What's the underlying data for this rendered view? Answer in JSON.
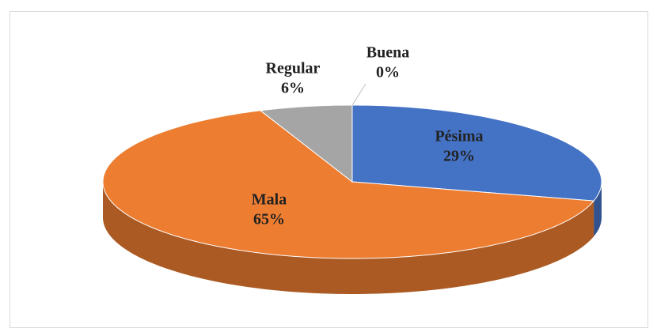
{
  "chart_data": {
    "type": "pie",
    "categories": [
      "Pésima",
      "Mala",
      "Regular",
      "Buena"
    ],
    "values": [
      29,
      65,
      6,
      0
    ],
    "value_labels": [
      "29%",
      "65%",
      "6%",
      "0%"
    ],
    "colors": [
      "#4472c4",
      "#ed7d31",
      "#a5a5a5",
      "#ffc000"
    ]
  }
}
